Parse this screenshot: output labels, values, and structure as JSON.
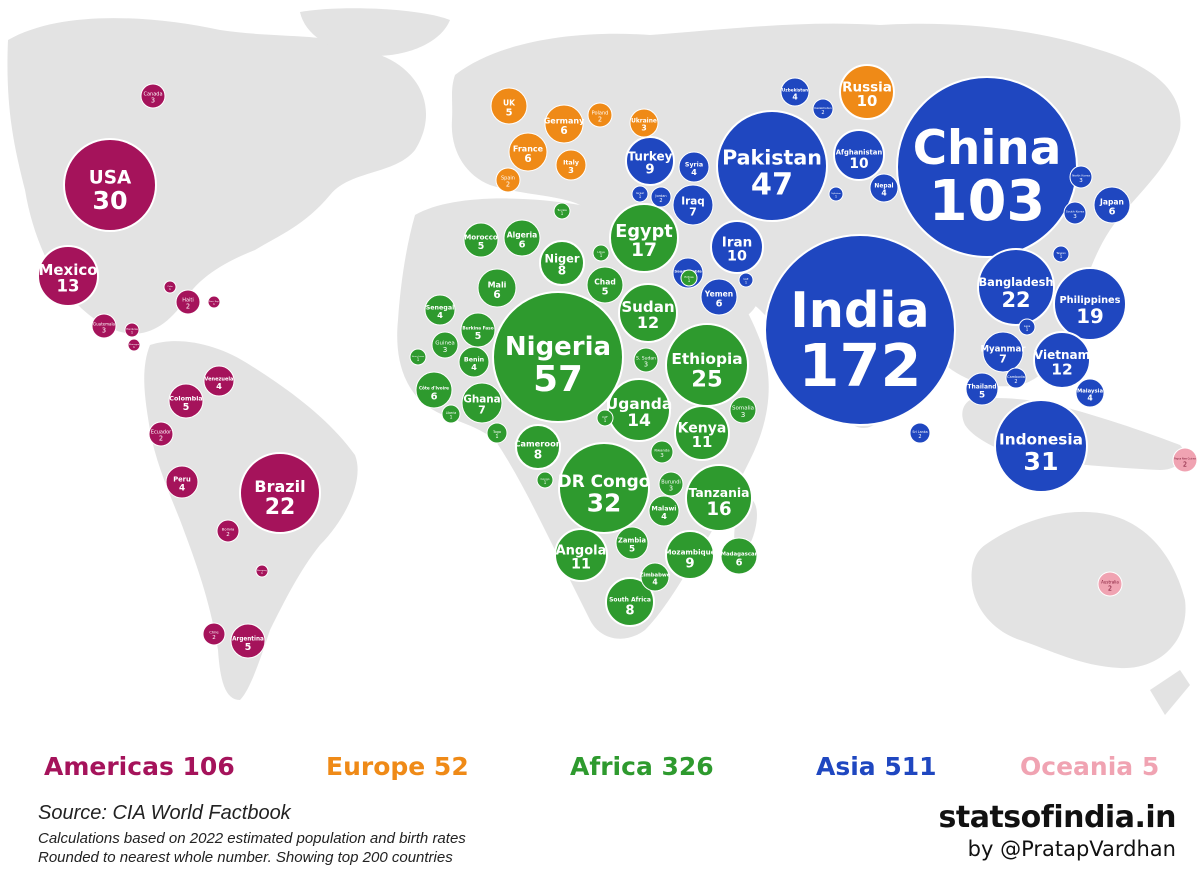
{
  "colors": {
    "americas": "#a5135b",
    "europe": "#ef8a17",
    "africa": "#2e9a2e",
    "asia": "#1f47c0",
    "oceania": "#f0a3b2",
    "land": "#e3e3e3",
    "sea": "#ffffff"
  },
  "legend": [
    {
      "region": "americas",
      "label": "Americas 106"
    },
    {
      "region": "europe",
      "label": "Europe 52"
    },
    {
      "region": "africa",
      "label": "Africa 326"
    },
    {
      "region": "asia",
      "label": "Asia 511"
    },
    {
      "region": "oceania",
      "label": "Oceania  5"
    }
  ],
  "footer": {
    "source": "Source: CIA World Factbook",
    "note1": "Calculations based on 2022 estimated population and birth rates",
    "note2": "Rounded to nearest whole number. Showing top 200 countries",
    "brand": "statsofindia.in",
    "byline": "by @PratapVardhan"
  },
  "bubbles": [
    {
      "name": "India",
      "value": 172,
      "region": "asia"
    },
    {
      "name": "China",
      "value": 103,
      "region": "asia"
    },
    {
      "name": "Nigeria",
      "value": 57,
      "region": "africa"
    },
    {
      "name": "Pakistan",
      "value": 47,
      "region": "asia"
    },
    {
      "name": "DR Congo",
      "value": 32,
      "region": "africa"
    },
    {
      "name": "Indonesia",
      "value": 31,
      "region": "asia"
    },
    {
      "name": "USA",
      "value": 30,
      "region": "americas"
    },
    {
      "name": "Ethiopia",
      "value": 25,
      "region": "africa"
    },
    {
      "name": "Bangladesh",
      "value": 22,
      "region": "asia"
    },
    {
      "name": "Brazil",
      "value": 22,
      "region": "americas"
    },
    {
      "name": "Philippines",
      "value": 19,
      "region": "asia"
    },
    {
      "name": "Egypt",
      "value": 17,
      "region": "africa"
    },
    {
      "name": "Tanzania",
      "value": 16,
      "region": "africa"
    },
    {
      "name": "Uganda",
      "value": 14,
      "region": "africa"
    },
    {
      "name": "Mexico",
      "value": 13,
      "region": "americas"
    },
    {
      "name": "Sudan",
      "value": 12,
      "region": "africa"
    },
    {
      "name": "Vietnam",
      "value": 12,
      "region": "asia"
    },
    {
      "name": "Kenya",
      "value": 11,
      "region": "africa"
    },
    {
      "name": "Angola",
      "value": 11,
      "region": "africa"
    },
    {
      "name": "Russia",
      "value": 10,
      "region": "europe"
    },
    {
      "name": "Iran",
      "value": 10,
      "region": "asia"
    },
    {
      "name": "Afghanistan",
      "value": 10,
      "region": "asia"
    },
    {
      "name": "Turkey",
      "value": 9,
      "region": "asia"
    },
    {
      "name": "Mozambique",
      "value": 9,
      "region": "africa"
    },
    {
      "name": "Niger",
      "value": 8,
      "region": "africa"
    },
    {
      "name": "Cameroon",
      "value": 8,
      "region": "africa"
    },
    {
      "name": "South Africa",
      "value": 8,
      "region": "africa"
    },
    {
      "name": "Iraq",
      "value": 7,
      "region": "asia"
    },
    {
      "name": "Myanmar",
      "value": 7,
      "region": "asia"
    },
    {
      "name": "Ghana",
      "value": 7,
      "region": "africa"
    },
    {
      "name": "Germany",
      "value": 6,
      "region": "europe"
    },
    {
      "name": "France",
      "value": 6,
      "region": "europe"
    },
    {
      "name": "Algeria",
      "value": 6,
      "region": "africa"
    },
    {
      "name": "Mali",
      "value": 6,
      "region": "africa"
    },
    {
      "name": "Côte d'Ivoire",
      "value": 6,
      "region": "africa"
    },
    {
      "name": "Yemen",
      "value": 6,
      "region": "asia"
    },
    {
      "name": "Japan",
      "value": 6,
      "region": "asia"
    },
    {
      "name": "Madagascar",
      "value": 6,
      "region": "africa"
    },
    {
      "name": "Chad",
      "value": 5,
      "region": "africa"
    },
    {
      "name": "UK",
      "value": 5,
      "region": "europe"
    },
    {
      "name": "Morocco",
      "value": 5,
      "region": "africa"
    },
    {
      "name": "Colombia",
      "value": 5,
      "region": "americas"
    },
    {
      "name": "Argentina",
      "value": 5,
      "region": "americas"
    },
    {
      "name": "Zambia",
      "value": 5,
      "region": "africa"
    },
    {
      "name": "Burkina Faso",
      "value": 5,
      "region": "africa"
    },
    {
      "name": "Thailand",
      "value": 5,
      "region": "asia"
    },
    {
      "name": "Peru",
      "value": 4,
      "region": "americas"
    },
    {
      "name": "Venezuela",
      "value": 4,
      "region": "americas"
    },
    {
      "name": "Syria",
      "value": 4,
      "region": "asia"
    },
    {
      "name": "Benin",
      "value": 4,
      "region": "africa"
    },
    {
      "name": "Senegal",
      "value": 4,
      "region": "africa"
    },
    {
      "name": "Malawi",
      "value": 4,
      "region": "africa"
    },
    {
      "name": "Zimbabwe",
      "value": 4,
      "region": "africa"
    },
    {
      "name": "Nepal",
      "value": 4,
      "region": "asia"
    },
    {
      "name": "Uzbekistan",
      "value": 4,
      "region": "asia"
    },
    {
      "name": "Saudi Arabia",
      "value": 4,
      "region": "asia"
    },
    {
      "name": "Malaysia",
      "value": 4,
      "region": "asia"
    },
    {
      "name": "Italy",
      "value": 3,
      "region": "europe"
    },
    {
      "name": "Ukraine",
      "value": 3,
      "region": "europe"
    },
    {
      "name": "Canada",
      "value": 3,
      "region": "americas"
    },
    {
      "name": "Guatemala",
      "value": 3,
      "region": "americas"
    },
    {
      "name": "Guinea",
      "value": 3,
      "region": "africa"
    },
    {
      "name": "Burundi",
      "value": 3,
      "region": "africa"
    },
    {
      "name": "S. Sudan",
      "value": 3,
      "region": "africa"
    },
    {
      "name": "Somalia",
      "value": 3,
      "region": "africa"
    },
    {
      "name": "Rwanda",
      "value": 3,
      "region": "africa"
    },
    {
      "name": "North Korea",
      "value": 3,
      "region": "asia"
    },
    {
      "name": "South Korea",
      "value": 3,
      "region": "asia"
    },
    {
      "name": "Spain",
      "value": 2,
      "region": "europe"
    },
    {
      "name": "Poland",
      "value": 2,
      "region": "europe"
    },
    {
      "name": "Haiti",
      "value": 2,
      "region": "americas"
    },
    {
      "name": "Ecuador",
      "value": 2,
      "region": "americas"
    },
    {
      "name": "Bolivia",
      "value": 2,
      "region": "americas"
    },
    {
      "name": "Chile",
      "value": 2,
      "region": "americas"
    },
    {
      "name": "Australia",
      "value": 2,
      "region": "oceania"
    },
    {
      "name": "Papua New Guinea",
      "value": 2,
      "region": "oceania"
    },
    {
      "name": "Sri Lanka",
      "value": 2,
      "region": "asia"
    },
    {
      "name": "Kazakhstan",
      "value": 2,
      "region": "asia"
    },
    {
      "name": "Cambodia",
      "value": 2,
      "region": "asia"
    },
    {
      "name": "Jordan",
      "value": 2,
      "region": "asia"
    },
    {
      "name": "Tunisia",
      "value": 1,
      "region": "africa"
    },
    {
      "name": "Libya",
      "value": 1,
      "region": "africa"
    },
    {
      "name": "Eritrea",
      "value": 1,
      "region": "africa"
    },
    {
      "name": "Liberia",
      "value": 1,
      "region": "africa"
    },
    {
      "name": "CAF",
      "value": 1,
      "region": "africa"
    },
    {
      "name": "Togo",
      "value": 1,
      "region": "africa"
    },
    {
      "name": "Congo",
      "value": 1,
      "region": "africa"
    },
    {
      "name": "Sierra Leone",
      "value": 1,
      "region": "africa"
    },
    {
      "name": "Israel",
      "value": 1,
      "region": "asia"
    },
    {
      "name": "Taiwan",
      "value": 1,
      "region": "asia"
    },
    {
      "name": "Laos",
      "value": 1,
      "region": "asia"
    },
    {
      "name": "Tajikistan",
      "value": 1,
      "region": "asia"
    },
    {
      "name": "UAE",
      "value": 1,
      "region": "asia"
    },
    {
      "name": "Cuba",
      "value": 1,
      "region": "americas"
    },
    {
      "name": "Honduras",
      "value": 1,
      "region": "americas"
    },
    {
      "name": "Dominican Rep.",
      "value": 1,
      "region": "americas"
    },
    {
      "name": "Nicaragua",
      "value": 1,
      "region": "americas"
    },
    {
      "name": "Paraguay",
      "value": 1,
      "region": "americas"
    }
  ]
}
